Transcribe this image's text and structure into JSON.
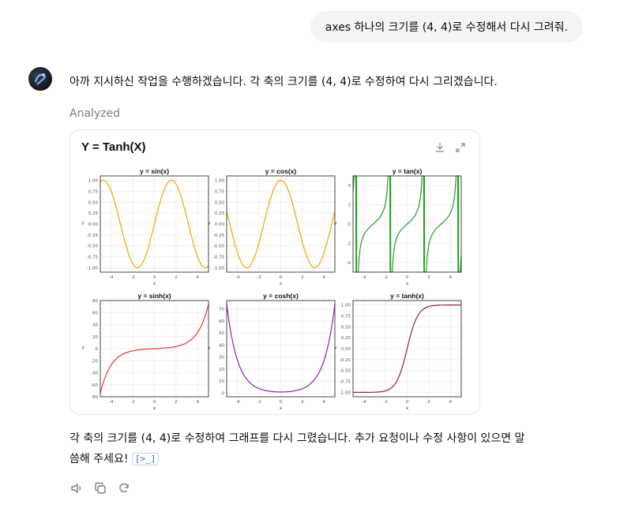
{
  "user_message": "axes 하나의 크기를 (4, 4)로 수정해서 다시 그려줘.",
  "assistant": {
    "intro": "아까 지시하신 작업을 수행하겠습니다. 각 축의 크기를 (4, 4)로 수정하여 다시 그리겠습니다.",
    "status": "Analyzed",
    "card_title": "Y = Tanh(X)",
    "reply_line1": "각 축의 크기를 (4, 4)로 수정하여 그래프를 다시 그렸습니다. 추가 요청이나 수정 사항이 있으면 말",
    "reply_line2": "씀해 주세요!",
    "citation": "[>_]"
  },
  "icons": [
    "download-icon",
    "expand-icon",
    "speaker-icon",
    "copy-icon",
    "regenerate-icon"
  ],
  "chart_data": [
    {
      "type": "line",
      "title": "y = sin(x)",
      "xlabel": "x",
      "ylabel": "y",
      "xlim": [
        -5,
        5
      ],
      "ylim": [
        -1.1,
        1.1
      ],
      "xticks": [
        "-4",
        "-2",
        "0",
        "2",
        "4"
      ],
      "yticks": [
        "1.00",
        "0.75",
        "0.50",
        "0.25",
        "0.00",
        "-0.25",
        "-0.50",
        "-0.75",
        "-1.00"
      ],
      "yvals": [
        1,
        0.75,
        0.5,
        0.25,
        0,
        -0.25,
        -0.5,
        -0.75,
        -1
      ],
      "color": "#f5a300",
      "func": "sin",
      "x_range": [
        -5,
        5
      ]
    },
    {
      "type": "line",
      "title": "y = cos(x)",
      "xlabel": "x",
      "ylabel": "y",
      "xlim": [
        -5,
        5
      ],
      "ylim": [
        -1.1,
        1.1
      ],
      "xticks": [
        "-4",
        "-2",
        "0",
        "2",
        "4"
      ],
      "yticks": [
        "1.00",
        "0.75",
        "0.50",
        "0.25",
        "0.00",
        "-0.25",
        "-0.50",
        "-0.75",
        "-1.00"
      ],
      "yvals": [
        1,
        0.75,
        0.5,
        0.25,
        0,
        -0.25,
        -0.5,
        -0.75,
        -1
      ],
      "color": "#f5a300",
      "func": "cos",
      "x_range": [
        -5,
        5
      ]
    },
    {
      "type": "line",
      "title": "y = tan(x)",
      "xlabel": "x",
      "ylabel": "y",
      "xlim": [
        -5,
        5
      ],
      "ylim": [
        -5,
        5
      ],
      "xticks": [
        "-4",
        "-2",
        "0",
        "2",
        "4"
      ],
      "yticks": [
        "4",
        "2",
        "0",
        "-2",
        "-4"
      ],
      "yvals": [
        4,
        2,
        0,
        -2,
        -4
      ],
      "color": "#2a9a2a",
      "func": "tan",
      "x_range": [
        -5,
        5
      ]
    },
    {
      "type": "line",
      "title": "y = sinh(x)",
      "xlabel": "x",
      "ylabel": "y",
      "xlim": [
        -5,
        5
      ],
      "ylim": [
        -80,
        80
      ],
      "xticks": [
        "-4",
        "-2",
        "0",
        "2",
        "4"
      ],
      "yticks": [
        "80",
        "60",
        "40",
        "20",
        "0",
        "-20",
        "-40",
        "-60",
        "-80"
      ],
      "yvals": [
        80,
        60,
        40,
        20,
        0,
        -20,
        -40,
        -60,
        -80
      ],
      "color": "#e53935",
      "func": "sinh",
      "x_range": [
        -5,
        5
      ]
    },
    {
      "type": "line",
      "title": "y = cosh(x)",
      "xlabel": "x",
      "ylabel": "y",
      "xlim": [
        -5,
        5
      ],
      "ylim": [
        -3,
        77
      ],
      "xticks": [
        "-4",
        "-2",
        "0",
        "2",
        "4"
      ],
      "yticks": [
        "70",
        "60",
        "50",
        "40",
        "30",
        "20",
        "10",
        "0"
      ],
      "yvals": [
        70,
        60,
        50,
        40,
        30,
        20,
        10,
        0
      ],
      "color": "#8e24aa",
      "func": "cosh",
      "x_range": [
        -5,
        5
      ]
    },
    {
      "type": "line",
      "title": "y = tanh(x)",
      "xlabel": "x",
      "ylabel": "y",
      "xlim": [
        -5,
        5
      ],
      "ylim": [
        -1.1,
        1.1
      ],
      "xticks": [
        "-4",
        "-2",
        "0",
        "2",
        "4"
      ],
      "yticks": [
        "1.00",
        "0.75",
        "0.50",
        "0.25",
        "0.00",
        "-0.25",
        "-0.50",
        "-0.75",
        "-1.00"
      ],
      "yvals": [
        1,
        0.75,
        0.5,
        0.25,
        0,
        -0.25,
        -0.5,
        -0.75,
        -1
      ],
      "color": "#8b2b2b",
      "func": "tanh",
      "x_range": [
        -5,
        5
      ]
    }
  ]
}
